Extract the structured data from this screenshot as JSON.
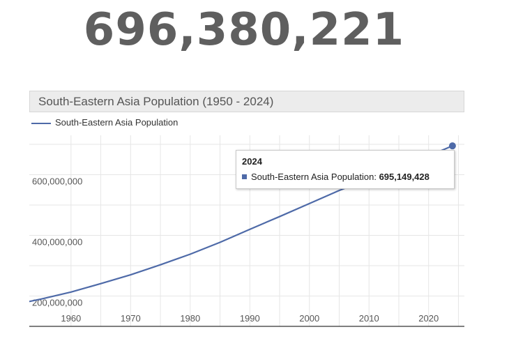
{
  "counter": {
    "value": "696,380,221"
  },
  "tooltip": {
    "year": "2024",
    "series": "South-Eastern Asia Population:",
    "value": "695,149,428"
  },
  "chart_data": {
    "type": "line",
    "title": "South-Eastern Asia Population (1950 - 2024)",
    "xlabel": "",
    "ylabel": "",
    "xlim": [
      1953,
      2026
    ],
    "ylim": [
      100000000,
      730000000
    ],
    "x_ticks": [
      1960,
      1970,
      1980,
      1990,
      2000,
      2010,
      2020
    ],
    "x_tick_labels": [
      "1960",
      "1970",
      "1980",
      "1990",
      "2000",
      "2010",
      "2020"
    ],
    "y_ticks": [
      200000000,
      400000000,
      600000000
    ],
    "y_tick_labels": [
      "200,000,000",
      "400,000,000",
      "600,000,000"
    ],
    "grid": true,
    "legend": "top-left",
    "series": [
      {
        "name": "South-Eastern Asia Population",
        "color": "#4e6aa8",
        "x": [
          1953,
          1955,
          1960,
          1965,
          1970,
          1975,
          1980,
          1985,
          1990,
          1995,
          2000,
          2005,
          2010,
          2015,
          2020,
          2024
        ],
        "y": [
          182000000,
          190000000,
          213000000,
          241000000,
          270000000,
          303000000,
          338000000,
          377000000,
          420000000,
          462000000,
          505000000,
          548000000,
          586000000,
          624000000,
          662000000,
          695149428
        ]
      }
    ]
  }
}
